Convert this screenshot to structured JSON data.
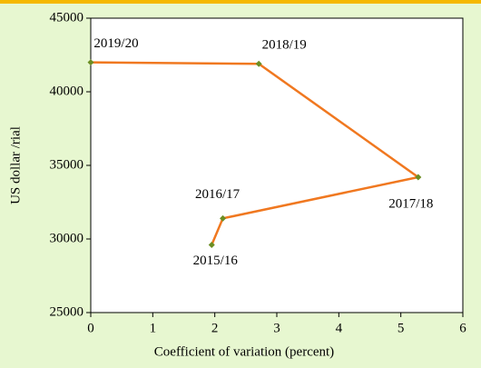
{
  "chart_data": {
    "type": "line",
    "x_label": "Coefficient of variation (percent)",
    "y_label": "US dollar /rial",
    "x": [
      1.95,
      2.13,
      5.28,
      2.71,
      0
    ],
    "series": [
      {
        "color": "#f07820",
        "marker_color": "#6b8e23",
        "values": [
          29600,
          31400,
          34200,
          41900,
          42000
        ],
        "point_labels": [
          "2015/16",
          "2016/17",
          "2017/18",
          "2018/19",
          "2019/20"
        ]
      }
    ],
    "xlim": [
      0,
      6
    ],
    "xticks": [
      0,
      1,
      2,
      3,
      4,
      5,
      6
    ],
    "ylim": [
      25000,
      45000
    ],
    "yticks": [
      25000,
      30000,
      35000,
      40000,
      45000
    ]
  }
}
